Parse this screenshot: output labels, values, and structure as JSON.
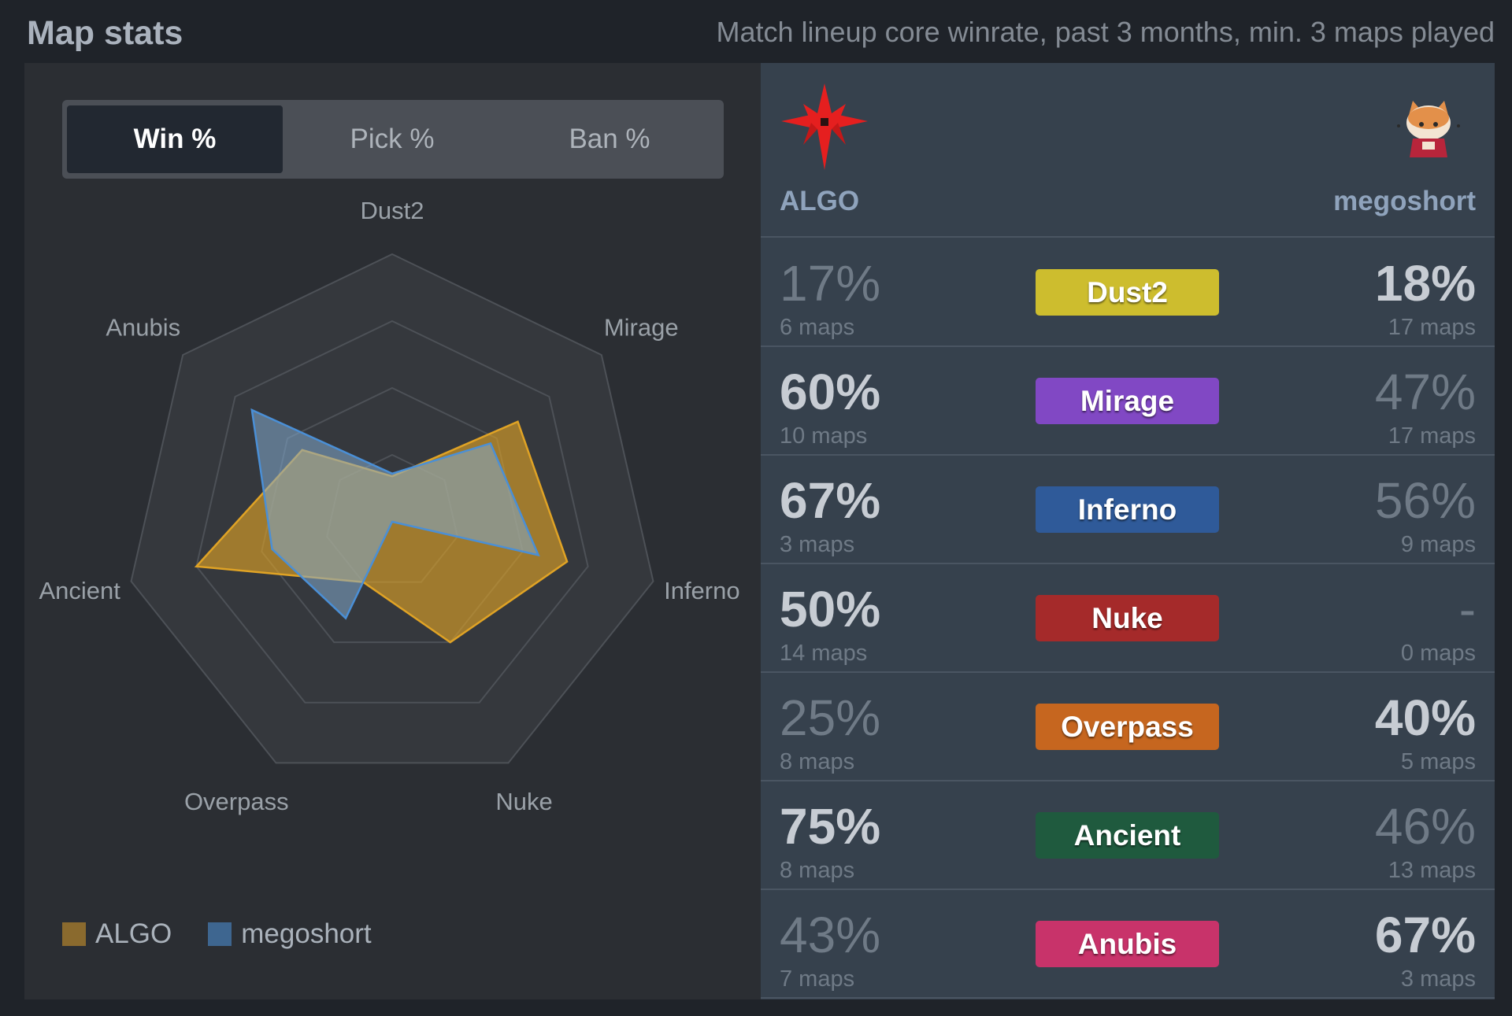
{
  "page": {
    "title": "Map stats",
    "subtitle": "Match lineup core winrate, past 3 months, min. 3 maps played"
  },
  "tabs": [
    {
      "label": "Win %",
      "active": true
    },
    {
      "label": "Pick %",
      "active": false
    },
    {
      "label": "Ban %",
      "active": false
    }
  ],
  "teams": [
    {
      "name": "ALGO",
      "color": "#e0a325"
    },
    {
      "name": "megoshort",
      "color": "#4a83c0"
    }
  ],
  "radar_axes": [
    "Dust2",
    "Mirage",
    "Inferno",
    "Nuke",
    "Overpass",
    "Ancient",
    "Anubis"
  ],
  "chart_data": {
    "type": "radar",
    "categories": [
      "Dust2",
      "Mirage",
      "Inferno",
      "Nuke",
      "Overpass",
      "Ancient",
      "Anubis"
    ],
    "series": [
      {
        "name": "ALGO",
        "values": [
          17,
          60,
          67,
          50,
          25,
          75,
          43
        ]
      },
      {
        "name": "megoshort",
        "values": [
          18,
          47,
          56,
          0,
          40,
          46,
          67
        ]
      }
    ],
    "rlim": [
      0,
      100
    ],
    "grid_levels": 4,
    "legend": "bottom-left"
  },
  "maps": [
    {
      "name": "Dust2",
      "badge_color": "#cdbd2e",
      "left_pct": "17%",
      "left_count": "6 maps",
      "left_bold": false,
      "right_pct": "18%",
      "right_count": "17 maps",
      "right_bold": true
    },
    {
      "name": "Mirage",
      "badge_color": "#8148c4",
      "left_pct": "60%",
      "left_count": "10 maps",
      "left_bold": true,
      "right_pct": "47%",
      "right_count": "17 maps",
      "right_bold": false
    },
    {
      "name": "Inferno",
      "badge_color": "#2f5a99",
      "left_pct": "67%",
      "left_count": "3 maps",
      "left_bold": true,
      "right_pct": "56%",
      "right_count": "9 maps",
      "right_bold": false
    },
    {
      "name": "Nuke",
      "badge_color": "#a52a2a",
      "left_pct": "50%",
      "left_count": "14 maps",
      "left_bold": true,
      "right_pct": "-",
      "right_count": "0 maps",
      "right_bold": false
    },
    {
      "name": "Overpass",
      "badge_color": "#c6661f",
      "left_pct": "25%",
      "left_count": "8 maps",
      "left_bold": false,
      "right_pct": "40%",
      "right_count": "5 maps",
      "right_bold": true
    },
    {
      "name": "Ancient",
      "badge_color": "#1f5a3e",
      "left_pct": "75%",
      "left_count": "8 maps",
      "left_bold": true,
      "right_pct": "46%",
      "right_count": "13 maps",
      "right_bold": false
    },
    {
      "name": "Anubis",
      "badge_color": "#c8336a",
      "left_pct": "43%",
      "left_count": "7 maps",
      "left_bold": false,
      "right_pct": "67%",
      "right_count": "3 maps",
      "right_bold": true
    }
  ]
}
